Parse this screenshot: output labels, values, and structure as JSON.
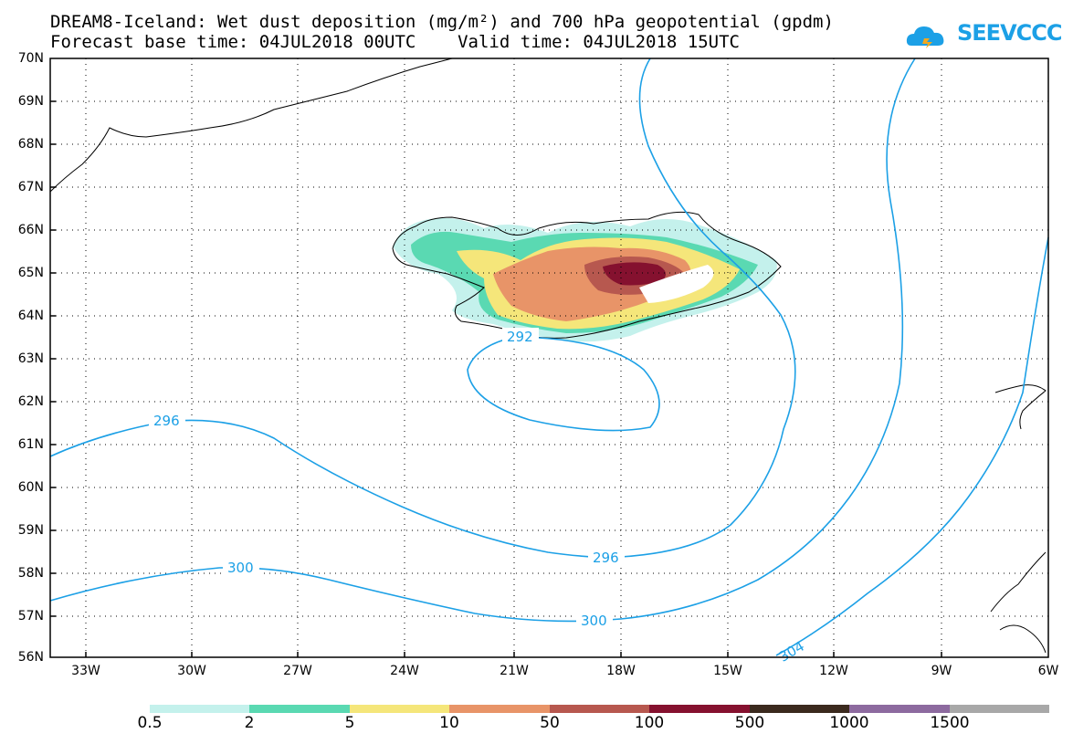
{
  "header": {
    "title_line1": "DREAM8-Iceland: Wet dust deposition (mg/m²) and 700 hPa geopotential (gpdm)",
    "title_line2": "Forecast base time: 04JUL2018 00UTC    Valid time: 04JUL2018 15UTC",
    "logo_text": "SEEVCCC"
  },
  "map": {
    "lat_labels": [
      "70N",
      "69N",
      "68N",
      "67N",
      "66N",
      "65N",
      "64N",
      "63N",
      "62N",
      "61N",
      "60N",
      "59N",
      "58N",
      "57N",
      "56N"
    ],
    "lon_labels": [
      "33W",
      "30W",
      "27W",
      "24W",
      "21W",
      "18W",
      "15W",
      "12W",
      "9W",
      "6W"
    ],
    "contour_labels": [
      {
        "text": "292",
        "value": 292
      },
      {
        "text": "296",
        "value": 296
      },
      {
        "text": "296",
        "value": 296
      },
      {
        "text": "300",
        "value": 300
      },
      {
        "text": "300",
        "value": 300
      },
      {
        "text": "304",
        "value": 304
      }
    ],
    "colors": {
      "contour": "#1ca0e6",
      "grid": "#000000"
    }
  },
  "colorbar": {
    "labels": [
      "0.5",
      "2",
      "5",
      "10",
      "50",
      "100",
      "500",
      "1000",
      "1500"
    ],
    "colors": [
      "#c4f1ec",
      "#5ad9b2",
      "#f5e67a",
      "#e89468",
      "#b7584f",
      "#85112f",
      "#3b2a1e",
      "#8d6a9f",
      "#a8a8a8"
    ]
  }
}
